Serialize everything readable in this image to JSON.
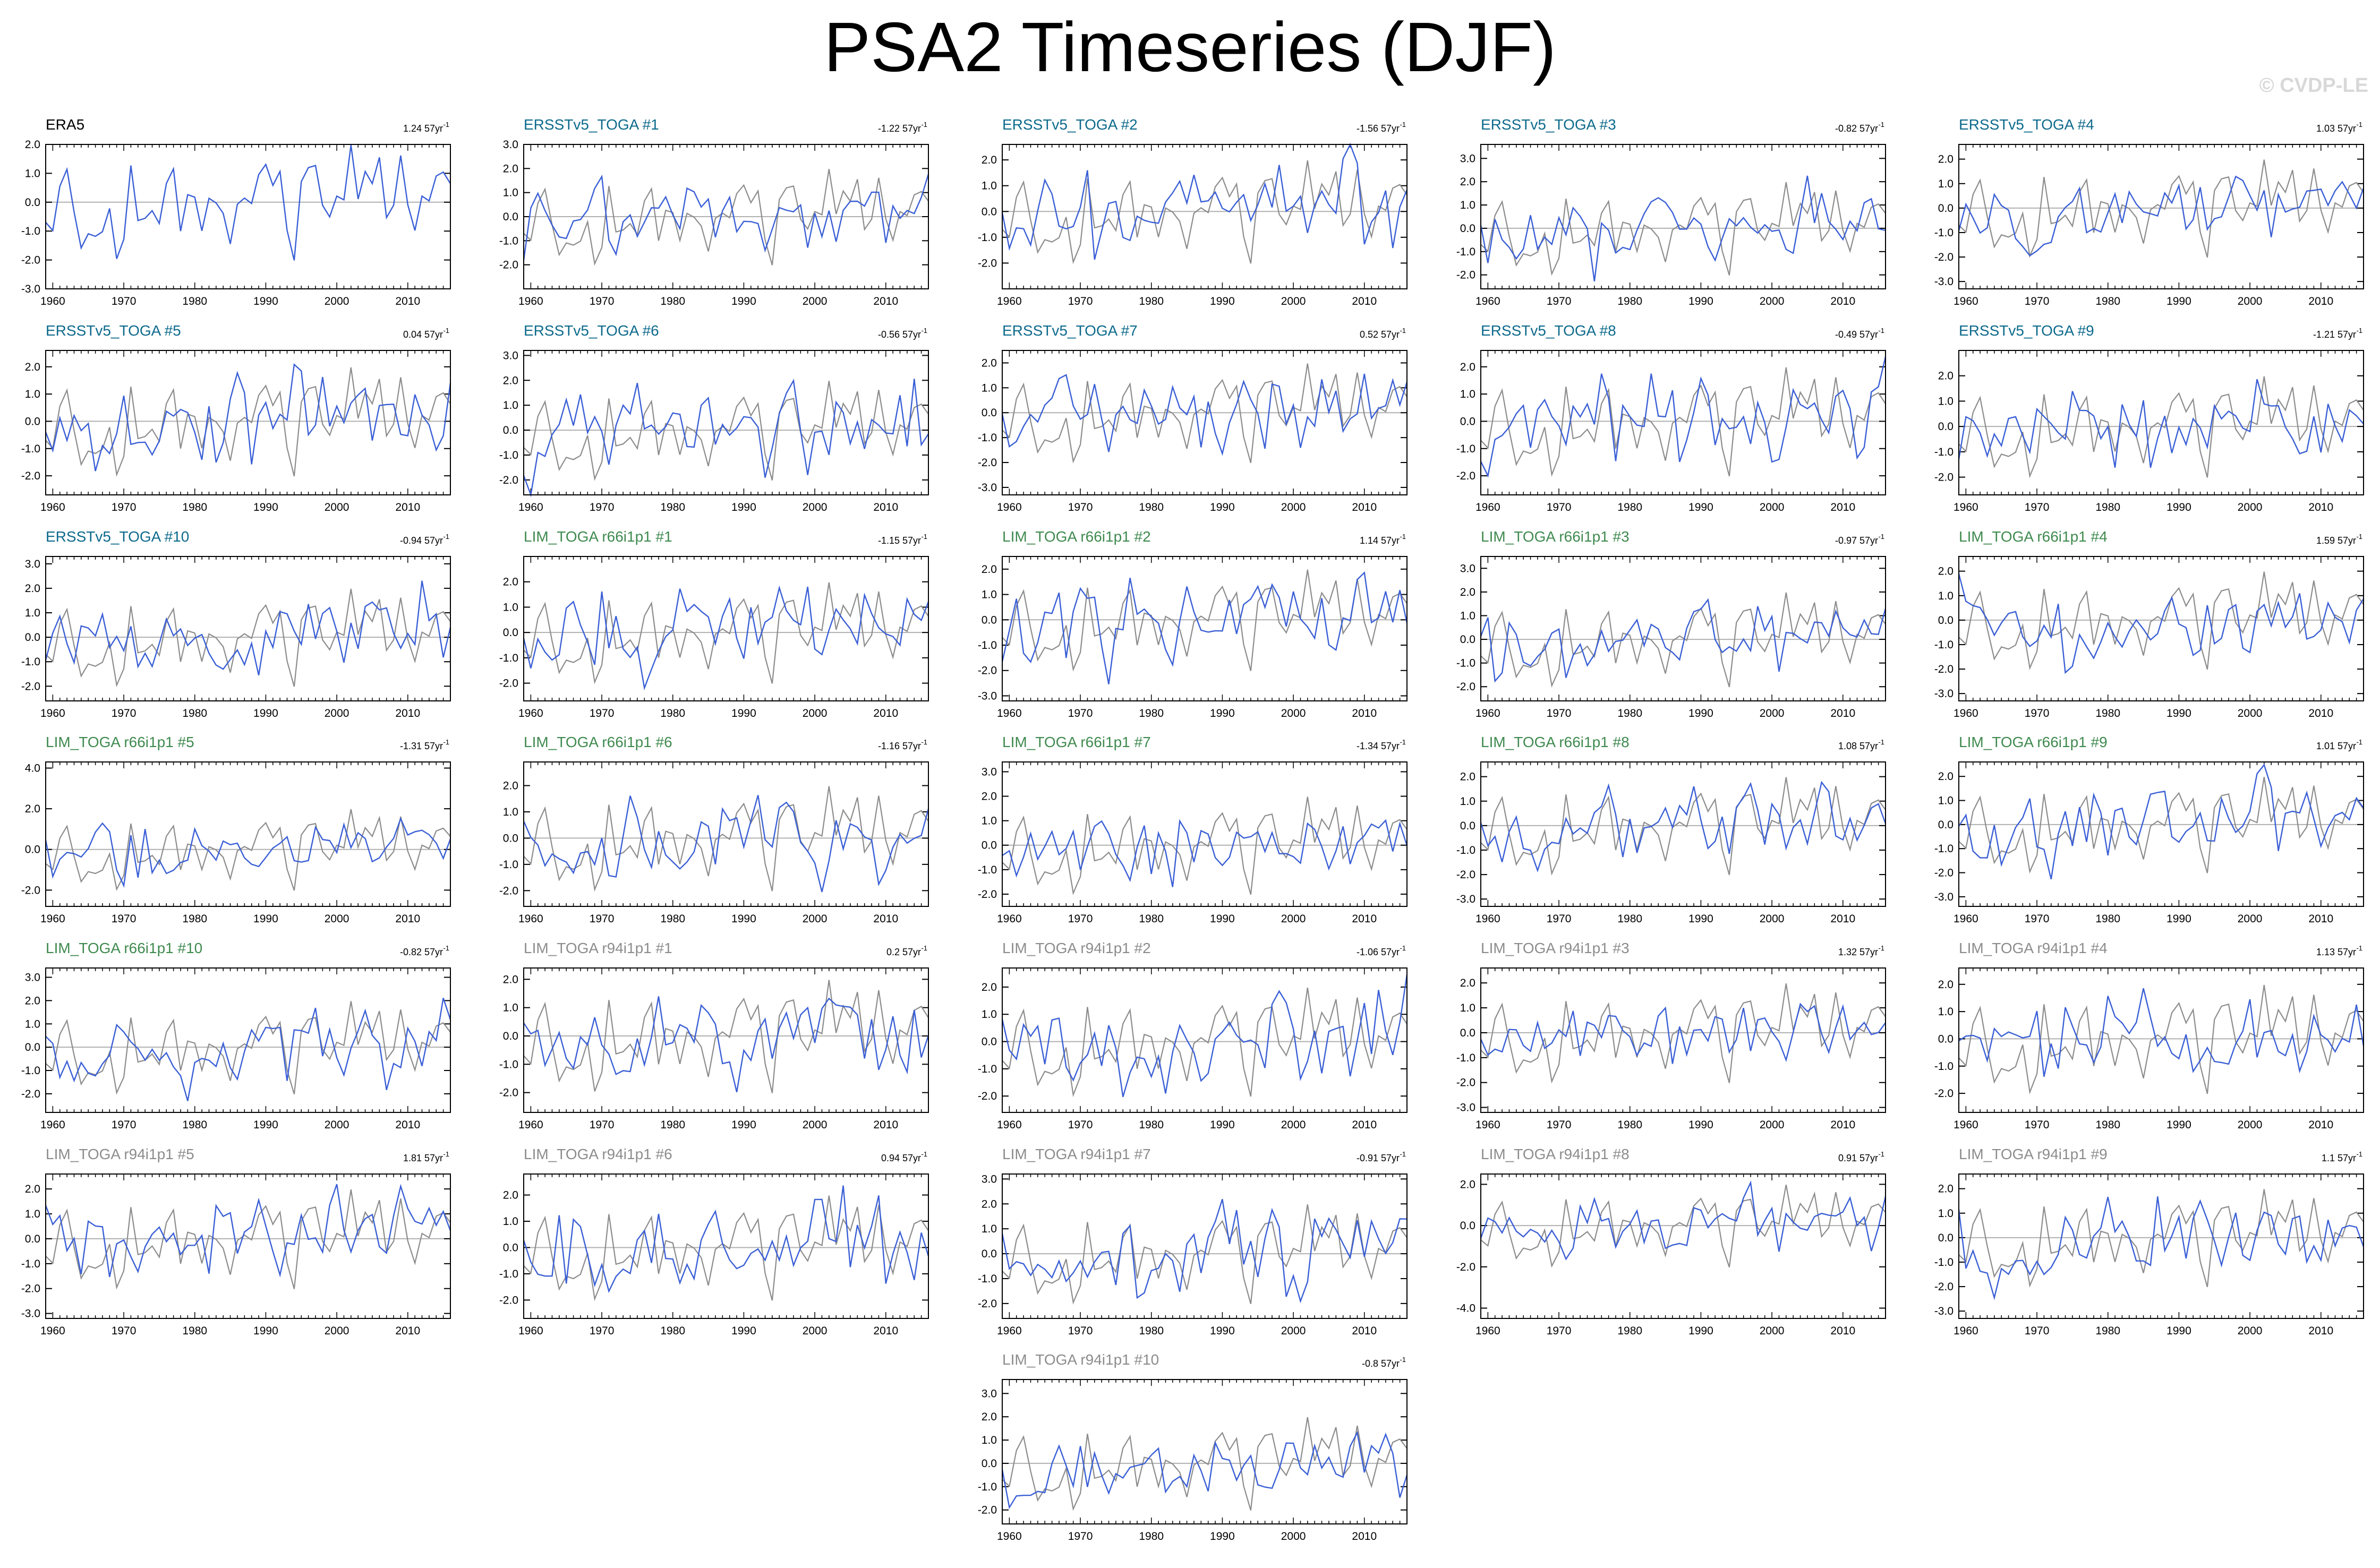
{
  "title": "PSA2 Timeseries (DJF)",
  "watermark": "© CVDP-LE",
  "colors": {
    "observed": "#8c8c8c",
    "member": "#3a5fd6",
    "title_obs": "#000000",
    "title_ersst": "#0d6a8c",
    "title_r66": "#3f8a4f",
    "title_r94": "#8c8c8c",
    "zero_line": "#b0b0b0",
    "frame": "#000000"
  },
  "chart_data": [
    {
      "type": "line",
      "title": "ERA5",
      "trend": "1.24 57yr",
      "trend_unit_power": "-1",
      "title_color": "title_obs",
      "ylim": [
        -3,
        2
      ],
      "y_ticks": [
        2.0,
        1.0,
        0.0,
        -1.0,
        -2.0,
        -3.0
      ],
      "x_ticks": [
        1960,
        1970,
        1980,
        1990,
        2000,
        2010
      ],
      "xlim": [
        1959,
        2016
      ],
      "show_observed": false,
      "seed": 101
    },
    {
      "type": "line",
      "title": "ERSSTv5_TOGA #1",
      "trend": "-1.22 57yr",
      "trend_unit_power": "-1",
      "title_color": "title_ersst",
      "ylim": [
        -3,
        3
      ],
      "y_ticks": [
        3.0,
        2.0,
        1.0,
        0.0,
        -1.0,
        -2.0
      ],
      "x_ticks": [
        1960,
        1970,
        1980,
        1990,
        2000,
        2010
      ],
      "xlim": [
        1959,
        2016
      ],
      "show_observed": true,
      "seed": 102
    },
    {
      "type": "line",
      "title": "ERSSTv5_TOGA #2",
      "trend": "-1.56 57yr",
      "trend_unit_power": "-1",
      "title_color": "title_ersst",
      "ylim": [
        -3,
        2.6
      ],
      "y_ticks": [
        2.0,
        1.0,
        0.0,
        -1.0,
        -2.0
      ],
      "x_ticks": [
        1960,
        1970,
        1980,
        1990,
        2000,
        2010
      ],
      "xlim": [
        1959,
        2016
      ],
      "show_observed": true,
      "seed": 103
    },
    {
      "type": "line",
      "title": "ERSSTv5_TOGA #3",
      "trend": "-0.82 57yr",
      "trend_unit_power": "-1",
      "title_color": "title_ersst",
      "ylim": [
        -2.6,
        3.6
      ],
      "y_ticks": [
        3.0,
        2.0,
        1.0,
        0.0,
        -1.0,
        -2.0
      ],
      "x_ticks": [
        1960,
        1970,
        1980,
        1990,
        2000,
        2010
      ],
      "xlim": [
        1959,
        2016
      ],
      "show_observed": true,
      "seed": 104
    },
    {
      "type": "line",
      "title": "ERSSTv5_TOGA #4",
      "trend": "1.03 57yr",
      "trend_unit_power": "-1",
      "title_color": "title_ersst",
      "ylim": [
        -3.3,
        2.6
      ],
      "y_ticks": [
        2.0,
        1.0,
        0.0,
        -1.0,
        -2.0,
        -3.0
      ],
      "x_ticks": [
        1960,
        1970,
        1980,
        1990,
        2000,
        2010
      ],
      "xlim": [
        1959,
        2016
      ],
      "show_observed": true,
      "seed": 105
    },
    {
      "type": "line",
      "title": "ERSSTv5_TOGA #5",
      "trend": "0.04 57yr",
      "trend_unit_power": "-1",
      "title_color": "title_ersst",
      "ylim": [
        -2.7,
        2.6
      ],
      "y_ticks": [
        2.0,
        1.0,
        0.0,
        -1.0,
        -2.0
      ],
      "x_ticks": [
        1960,
        1970,
        1980,
        1990,
        2000,
        2010
      ],
      "xlim": [
        1959,
        2016
      ],
      "show_observed": true,
      "seed": 106
    },
    {
      "type": "line",
      "title": "ERSSTv5_TOGA #6",
      "trend": "-0.56 57yr",
      "trend_unit_power": "-1",
      "title_color": "title_ersst",
      "ylim": [
        -2.6,
        3.2
      ],
      "y_ticks": [
        3.0,
        2.0,
        1.0,
        0.0,
        -1.0,
        -2.0
      ],
      "x_ticks": [
        1960,
        1970,
        1980,
        1990,
        2000,
        2010
      ],
      "xlim": [
        1959,
        2016
      ],
      "show_observed": true,
      "seed": 107
    },
    {
      "type": "line",
      "title": "ERSSTv5_TOGA #7",
      "trend": "0.52 57yr",
      "trend_unit_power": "-1",
      "title_color": "title_ersst",
      "ylim": [
        -3.3,
        2.5
      ],
      "y_ticks": [
        2.0,
        1.0,
        0.0,
        -1.0,
        -2.0,
        -3.0
      ],
      "x_ticks": [
        1960,
        1970,
        1980,
        1990,
        2000,
        2010
      ],
      "xlim": [
        1959,
        2016
      ],
      "show_observed": true,
      "seed": 108
    },
    {
      "type": "line",
      "title": "ERSSTv5_TOGA #8",
      "trend": "-0.49 57yr",
      "trend_unit_power": "-1",
      "title_color": "title_ersst",
      "ylim": [
        -2.7,
        2.6
      ],
      "y_ticks": [
        2.0,
        1.0,
        0.0,
        -1.0,
        -2.0
      ],
      "x_ticks": [
        1960,
        1970,
        1980,
        1990,
        2000,
        2010
      ],
      "xlim": [
        1959,
        2016
      ],
      "show_observed": true,
      "seed": 109
    },
    {
      "type": "line",
      "title": "ERSSTv5_TOGA #9",
      "trend": "-1.21 57yr",
      "trend_unit_power": "-1",
      "title_color": "title_ersst",
      "ylim": [
        -2.7,
        3
      ],
      "y_ticks": [
        2.0,
        1.0,
        0.0,
        -1.0,
        -2.0
      ],
      "x_ticks": [
        1960,
        1970,
        1980,
        1990,
        2000,
        2010
      ],
      "xlim": [
        1959,
        2016
      ],
      "show_observed": true,
      "seed": 110
    },
    {
      "type": "line",
      "title": "ERSSTv5_TOGA #10",
      "trend": "-0.94 57yr",
      "trend_unit_power": "-1",
      "title_color": "title_ersst",
      "ylim": [
        -2.6,
        3.3
      ],
      "y_ticks": [
        3.0,
        2.0,
        1.0,
        0.0,
        -1.0,
        -2.0
      ],
      "x_ticks": [
        1960,
        1970,
        1980,
        1990,
        2000,
        2010
      ],
      "xlim": [
        1959,
        2016
      ],
      "show_observed": true,
      "seed": 111
    },
    {
      "type": "line",
      "title": "LIM_TOGA r66i1p1 #1",
      "trend": "-1.15 57yr",
      "trend_unit_power": "-1",
      "title_color": "title_r66",
      "ylim": [
        -2.7,
        3
      ],
      "y_ticks": [
        2.0,
        1.0,
        0.0,
        -1.0,
        -2.0
      ],
      "x_ticks": [
        1960,
        1970,
        1980,
        1990,
        2000,
        2010
      ],
      "xlim": [
        1959,
        2016
      ],
      "show_observed": true,
      "seed": 112
    },
    {
      "type": "line",
      "title": "LIM_TOGA r66i1p1 #2",
      "trend": "1.14 57yr",
      "trend_unit_power": "-1",
      "title_color": "title_r66",
      "ylim": [
        -3.2,
        2.5
      ],
      "y_ticks": [
        2.0,
        1.0,
        0.0,
        -1.0,
        -2.0,
        -3.0
      ],
      "x_ticks": [
        1960,
        1970,
        1980,
        1990,
        2000,
        2010
      ],
      "xlim": [
        1959,
        2016
      ],
      "show_observed": true,
      "seed": 113
    },
    {
      "type": "line",
      "title": "LIM_TOGA r66i1p1 #3",
      "trend": "-0.97 57yr",
      "trend_unit_power": "-1",
      "title_color": "title_r66",
      "ylim": [
        -2.6,
        3.5
      ],
      "y_ticks": [
        3.0,
        2.0,
        1.0,
        0.0,
        -1.0,
        -2.0
      ],
      "x_ticks": [
        1960,
        1970,
        1980,
        1990,
        2000,
        2010
      ],
      "xlim": [
        1959,
        2016
      ],
      "show_observed": true,
      "seed": 114
    },
    {
      "type": "line",
      "title": "LIM_TOGA r66i1p1 #4",
      "trend": "1.59 57yr",
      "trend_unit_power": "-1",
      "title_color": "title_r66",
      "ylim": [
        -3.3,
        2.6
      ],
      "y_ticks": [
        2.0,
        1.0,
        0.0,
        -1.0,
        -2.0,
        -3.0
      ],
      "x_ticks": [
        1960,
        1970,
        1980,
        1990,
        2000,
        2010
      ],
      "xlim": [
        1959,
        2016
      ],
      "show_observed": true,
      "seed": 115
    },
    {
      "type": "line",
      "title": "LIM_TOGA r66i1p1 #5",
      "trend": "-1.31 57yr",
      "trend_unit_power": "-1",
      "title_color": "title_r66",
      "ylim": [
        -2.8,
        4.3
      ],
      "y_ticks": [
        4.0,
        2.0,
        0.0,
        -2.0
      ],
      "x_ticks": [
        1960,
        1970,
        1980,
        1990,
        2000,
        2010
      ],
      "xlim": [
        1959,
        2016
      ],
      "show_observed": true,
      "seed": 116
    },
    {
      "type": "line",
      "title": "LIM_TOGA r66i1p1 #6",
      "trend": "-1.16 57yr",
      "trend_unit_power": "-1",
      "title_color": "title_r66",
      "ylim": [
        -2.6,
        2.9
      ],
      "y_ticks": [
        2.0,
        1.0,
        0.0,
        -1.0,
        -2.0
      ],
      "x_ticks": [
        1960,
        1970,
        1980,
        1990,
        2000,
        2010
      ],
      "xlim": [
        1959,
        2016
      ],
      "show_observed": true,
      "seed": 117
    },
    {
      "type": "line",
      "title": "LIM_TOGA r66i1p1 #7",
      "trend": "-1.34 57yr",
      "trend_unit_power": "-1",
      "title_color": "title_r66",
      "ylim": [
        -2.5,
        3.4
      ],
      "y_ticks": [
        3.0,
        2.0,
        1.0,
        0.0,
        -1.0,
        -2.0
      ],
      "x_ticks": [
        1960,
        1970,
        1980,
        1990,
        2000,
        2010
      ],
      "xlim": [
        1959,
        2016
      ],
      "show_observed": true,
      "seed": 118
    },
    {
      "type": "line",
      "title": "LIM_TOGA r66i1p1 #8",
      "trend": "1.08 57yr",
      "trend_unit_power": "-1",
      "title_color": "title_r66",
      "ylim": [
        -3.3,
        2.6
      ],
      "y_ticks": [
        2.0,
        1.0,
        0.0,
        -1.0,
        -2.0,
        -3.0
      ],
      "x_ticks": [
        1960,
        1970,
        1980,
        1990,
        2000,
        2010
      ],
      "xlim": [
        1959,
        2016
      ],
      "show_observed": true,
      "seed": 119
    },
    {
      "type": "line",
      "title": "LIM_TOGA r66i1p1 #9",
      "trend": "1.01 57yr",
      "trend_unit_power": "-1",
      "title_color": "title_r66",
      "ylim": [
        -3.4,
        2.6
      ],
      "y_ticks": [
        2.0,
        1.0,
        0.0,
        -1.0,
        -2.0,
        -3.0
      ],
      "x_ticks": [
        1960,
        1970,
        1980,
        1990,
        2000,
        2010
      ],
      "xlim": [
        1959,
        2016
      ],
      "show_observed": true,
      "seed": 120
    },
    {
      "type": "line",
      "title": "LIM_TOGA r66i1p1 #10",
      "trend": "-0.82 57yr",
      "trend_unit_power": "-1",
      "title_color": "title_r66",
      "ylim": [
        -2.8,
        3.4
      ],
      "y_ticks": [
        3.0,
        2.0,
        1.0,
        0.0,
        -1.0,
        -2.0
      ],
      "x_ticks": [
        1960,
        1970,
        1980,
        1990,
        2000,
        2010
      ],
      "xlim": [
        1959,
        2016
      ],
      "show_observed": true,
      "seed": 121
    },
    {
      "type": "line",
      "title": "LIM_TOGA r94i1p1 #1",
      "trend": "0.2 57yr",
      "trend_unit_power": "-1",
      "title_color": "title_r94",
      "ylim": [
        -2.7,
        2.4
      ],
      "y_ticks": [
        2.0,
        1.0,
        0.0,
        -1.0,
        -2.0
      ],
      "x_ticks": [
        1960,
        1970,
        1980,
        1990,
        2000,
        2010
      ],
      "xlim": [
        1959,
        2016
      ],
      "show_observed": true,
      "seed": 122
    },
    {
      "type": "line",
      "title": "LIM_TOGA r94i1p1 #2",
      "trend": "-1.06 57yr",
      "trend_unit_power": "-1",
      "title_color": "title_r94",
      "ylim": [
        -2.6,
        2.7
      ],
      "y_ticks": [
        2.0,
        1.0,
        0.0,
        -1.0,
        -2.0
      ],
      "x_ticks": [
        1960,
        1970,
        1980,
        1990,
        2000,
        2010
      ],
      "xlim": [
        1959,
        2016
      ],
      "show_observed": true,
      "seed": 123
    },
    {
      "type": "line",
      "title": "LIM_TOGA r94i1p1 #3",
      "trend": "1.32 57yr",
      "trend_unit_power": "-1",
      "title_color": "title_r94",
      "ylim": [
        -3.2,
        2.6
      ],
      "y_ticks": [
        2.0,
        1.0,
        0.0,
        -1.0,
        -2.0,
        -3.0
      ],
      "x_ticks": [
        1960,
        1970,
        1980,
        1990,
        2000,
        2010
      ],
      "xlim": [
        1959,
        2016
      ],
      "show_observed": true,
      "seed": 124
    },
    {
      "type": "line",
      "title": "LIM_TOGA r94i1p1 #4",
      "trend": "1.13 57yr",
      "trend_unit_power": "-1",
      "title_color": "title_r94",
      "ylim": [
        -2.7,
        2.6
      ],
      "y_ticks": [
        2.0,
        1.0,
        0.0,
        -1.0,
        -2.0
      ],
      "x_ticks": [
        1960,
        1970,
        1980,
        1990,
        2000,
        2010
      ],
      "xlim": [
        1959,
        2016
      ],
      "show_observed": true,
      "seed": 125
    },
    {
      "type": "line",
      "title": "LIM_TOGA r94i1p1 #5",
      "trend": "1.81 57yr",
      "trend_unit_power": "-1",
      "title_color": "title_r94",
      "ylim": [
        -3.2,
        2.6
      ],
      "y_ticks": [
        2.0,
        1.0,
        0.0,
        -1.0,
        -2.0,
        -3.0
      ],
      "x_ticks": [
        1960,
        1970,
        1980,
        1990,
        2000,
        2010
      ],
      "xlim": [
        1959,
        2016
      ],
      "show_observed": true,
      "seed": 126
    },
    {
      "type": "line",
      "title": "LIM_TOGA r94i1p1 #6",
      "trend": "0.94 57yr",
      "trend_unit_power": "-1",
      "title_color": "title_r94",
      "ylim": [
        -2.7,
        2.8
      ],
      "y_ticks": [
        2.0,
        1.0,
        0.0,
        -1.0,
        -2.0
      ],
      "x_ticks": [
        1960,
        1970,
        1980,
        1990,
        2000,
        2010
      ],
      "xlim": [
        1959,
        2016
      ],
      "show_observed": true,
      "seed": 127
    },
    {
      "type": "line",
      "title": "LIM_TOGA r94i1p1 #7",
      "trend": "-0.91 57yr",
      "trend_unit_power": "-1",
      "title_color": "title_r94",
      "ylim": [
        -2.6,
        3.2
      ],
      "y_ticks": [
        3.0,
        2.0,
        1.0,
        0.0,
        -1.0,
        -2.0
      ],
      "x_ticks": [
        1960,
        1970,
        1980,
        1990,
        2000,
        2010
      ],
      "xlim": [
        1959,
        2016
      ],
      "show_observed": true,
      "seed": 128
    },
    {
      "type": "line",
      "title": "LIM_TOGA r94i1p1 #8",
      "trend": "0.91 57yr",
      "trend_unit_power": "-1",
      "title_color": "title_r94",
      "ylim": [
        -4.5,
        2.5
      ],
      "y_ticks": [
        2.0,
        0.0,
        -2.0,
        -4.0
      ],
      "x_ticks": [
        1960,
        1970,
        1980,
        1990,
        2000,
        2010
      ],
      "xlim": [
        1959,
        2016
      ],
      "show_observed": true,
      "seed": 129
    },
    {
      "type": "line",
      "title": "LIM_TOGA r94i1p1 #9",
      "trend": "1.1 57yr",
      "trend_unit_power": "-1",
      "title_color": "title_r94",
      "ylim": [
        -3.3,
        2.6
      ],
      "y_ticks": [
        2.0,
        1.0,
        0.0,
        -1.0,
        -2.0,
        -3.0
      ],
      "x_ticks": [
        1960,
        1970,
        1980,
        1990,
        2000,
        2010
      ],
      "xlim": [
        1959,
        2016
      ],
      "show_observed": true,
      "seed": 130
    },
    {
      "type": "line",
      "title": "LIM_TOGA r94i1p1 #10",
      "trend": "-0.8 57yr",
      "trend_unit_power": "-1",
      "title_color": "title_r94",
      "ylim": [
        -2.6,
        3.6
      ],
      "y_ticks": [
        3.0,
        2.0,
        1.0,
        0.0,
        -1.0,
        -2.0
      ],
      "x_ticks": [
        1960,
        1970,
        1980,
        1990,
        2000,
        2010
      ],
      "xlim": [
        1959,
        2016
      ],
      "show_observed": true,
      "seed": 131
    }
  ]
}
